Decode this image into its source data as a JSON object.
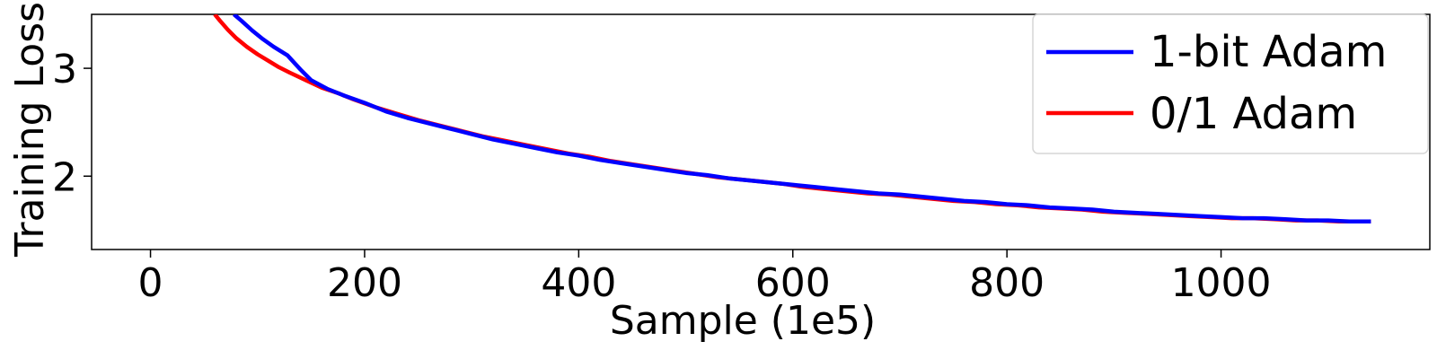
{
  "chart_data": {
    "type": "line",
    "title": "",
    "xlabel": "Sample (1e5)",
    "ylabel": "Training Loss",
    "xlim": [
      -55,
      1195
    ],
    "ylim": [
      1.32,
      3.5
    ],
    "xticks": [
      0,
      200,
      400,
      600,
      800,
      1000
    ],
    "yticks": [
      2,
      3
    ],
    "grid": false,
    "legend_position": "top-right",
    "series": [
      {
        "name": "1-bit Adam",
        "color": "#0000ff",
        "points": [
          [
            78,
            3.5
          ],
          [
            85,
            3.44
          ],
          [
            95,
            3.35
          ],
          [
            105,
            3.27
          ],
          [
            115,
            3.2
          ],
          [
            128,
            3.12
          ],
          [
            140,
            2.99
          ],
          [
            150,
            2.89
          ],
          [
            165,
            2.81
          ],
          [
            180,
            2.75
          ],
          [
            200,
            2.68
          ],
          [
            220,
            2.6
          ],
          [
            240,
            2.54
          ],
          [
            260,
            2.49
          ],
          [
            280,
            2.44
          ],
          [
            300,
            2.39
          ],
          [
            320,
            2.34
          ],
          [
            340,
            2.3
          ],
          [
            360,
            2.26
          ],
          [
            380,
            2.22
          ],
          [
            400,
            2.19
          ],
          [
            420,
            2.15
          ],
          [
            440,
            2.12
          ],
          [
            460,
            2.09
          ],
          [
            480,
            2.06
          ],
          [
            500,
            2.03
          ],
          [
            520,
            2.01
          ],
          [
            540,
            1.98
          ],
          [
            560,
            1.96
          ],
          [
            580,
            1.94
          ],
          [
            600,
            1.92
          ],
          [
            620,
            1.9
          ],
          [
            640,
            1.88
          ],
          [
            660,
            1.86
          ],
          [
            680,
            1.84
          ],
          [
            700,
            1.83
          ],
          [
            720,
            1.81
          ],
          [
            740,
            1.79
          ],
          [
            760,
            1.77
          ],
          [
            780,
            1.76
          ],
          [
            800,
            1.74
          ],
          [
            820,
            1.73
          ],
          [
            840,
            1.71
          ],
          [
            860,
            1.7
          ],
          [
            880,
            1.69
          ],
          [
            900,
            1.67
          ],
          [
            920,
            1.66
          ],
          [
            940,
            1.65
          ],
          [
            960,
            1.64
          ],
          [
            980,
            1.63
          ],
          [
            1000,
            1.62
          ],
          [
            1020,
            1.61
          ],
          [
            1040,
            1.61
          ],
          [
            1060,
            1.6
          ],
          [
            1080,
            1.59
          ],
          [
            1100,
            1.59
          ],
          [
            1120,
            1.58
          ],
          [
            1140,
            1.58
          ]
        ]
      },
      {
        "name": "0/1 Adam",
        "color": "#ff0000",
        "points": [
          [
            60,
            3.5
          ],
          [
            65,
            3.44
          ],
          [
            72,
            3.36
          ],
          [
            80,
            3.28
          ],
          [
            90,
            3.2
          ],
          [
            100,
            3.13
          ],
          [
            110,
            3.07
          ],
          [
            120,
            3.01
          ],
          [
            130,
            2.96
          ],
          [
            145,
            2.89
          ],
          [
            160,
            2.82
          ],
          [
            175,
            2.77
          ],
          [
            190,
            2.71
          ],
          [
            210,
            2.64
          ],
          [
            230,
            2.58
          ],
          [
            250,
            2.52
          ],
          [
            270,
            2.47
          ],
          [
            290,
            2.42
          ],
          [
            310,
            2.37
          ],
          [
            330,
            2.33
          ],
          [
            350,
            2.29
          ],
          [
            370,
            2.25
          ],
          [
            390,
            2.21
          ],
          [
            410,
            2.18
          ],
          [
            430,
            2.14
          ],
          [
            450,
            2.11
          ],
          [
            470,
            2.08
          ],
          [
            490,
            2.05
          ],
          [
            510,
            2.02
          ],
          [
            530,
            1.99
          ],
          [
            550,
            1.97
          ],
          [
            570,
            1.95
          ],
          [
            590,
            1.93
          ],
          [
            610,
            1.9
          ],
          [
            630,
            1.88
          ],
          [
            650,
            1.86
          ],
          [
            670,
            1.84
          ],
          [
            690,
            1.83
          ],
          [
            710,
            1.81
          ],
          [
            730,
            1.79
          ],
          [
            750,
            1.77
          ],
          [
            770,
            1.76
          ],
          [
            790,
            1.74
          ],
          [
            810,
            1.73
          ],
          [
            830,
            1.71
          ],
          [
            850,
            1.7
          ],
          [
            870,
            1.69
          ],
          [
            890,
            1.67
          ],
          [
            910,
            1.66
          ],
          [
            930,
            1.65
          ],
          [
            950,
            1.64
          ],
          [
            970,
            1.63
          ],
          [
            990,
            1.62
          ],
          [
            1010,
            1.61
          ],
          [
            1030,
            1.61
          ],
          [
            1050,
            1.6
          ],
          [
            1070,
            1.59
          ],
          [
            1090,
            1.59
          ],
          [
            1110,
            1.58
          ],
          [
            1130,
            1.58
          ],
          [
            1140,
            1.58
          ]
        ]
      }
    ]
  }
}
